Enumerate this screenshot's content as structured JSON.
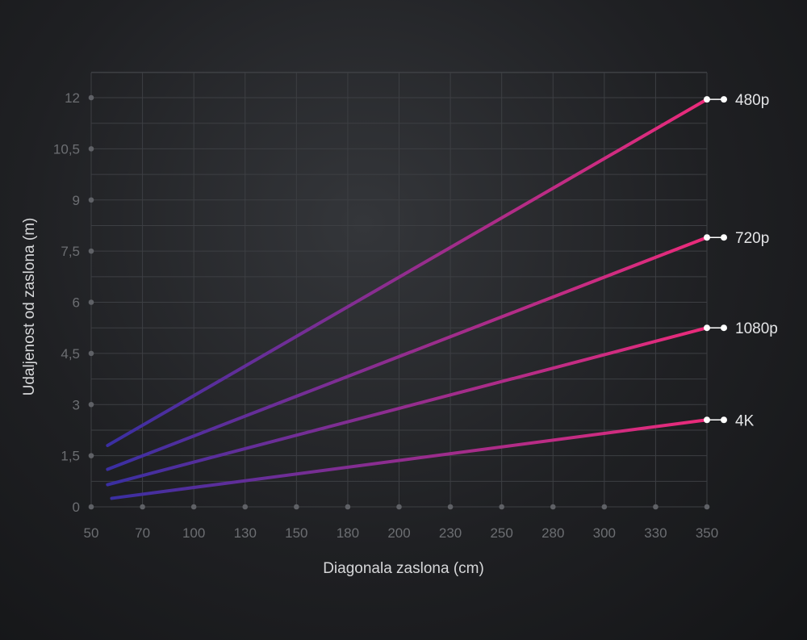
{
  "chart_data": {
    "type": "line",
    "title": "",
    "xlabel": "Diagonala zaslona (cm)",
    "ylabel": "Udaljenost od zaslona (m)",
    "xlim": [
      50,
      350
    ],
    "ylim": [
      0,
      12.75
    ],
    "x_ticks": [
      "50",
      "70",
      "100",
      "130",
      "150",
      "180",
      "200",
      "230",
      "250",
      "280",
      "300",
      "330",
      "350"
    ],
    "y_ticks": [
      {
        "label": "0",
        "value": 0
      },
      {
        "label": "1,5",
        "value": 1.5
      },
      {
        "label": "3",
        "value": 3
      },
      {
        "label": "4,5",
        "value": 4.5
      },
      {
        "label": "6",
        "value": 6
      },
      {
        "label": "7,5",
        "value": 7.5
      },
      {
        "label": "9",
        "value": 9
      },
      {
        "label": "10,5",
        "value": 10.5
      },
      {
        "label": "12",
        "value": 12
      }
    ],
    "grid": true,
    "legend": "right-end labels",
    "series": [
      {
        "name": "480p",
        "x": [
          58,
          350
        ],
        "y": [
          1.8,
          11.95
        ]
      },
      {
        "name": "720p",
        "x": [
          58,
          350
        ],
        "y": [
          1.1,
          7.9
        ]
      },
      {
        "name": "1080p",
        "x": [
          58,
          350
        ],
        "y": [
          0.65,
          5.25
        ]
      },
      {
        "name": "4K",
        "x": [
          60,
          350
        ],
        "y": [
          0.25,
          2.55
        ]
      }
    ],
    "colors": {
      "start": "#3b2fa2",
      "end": "#ec2b7a",
      "grid": "#3d3f43",
      "tick": "#6c6e72"
    }
  }
}
